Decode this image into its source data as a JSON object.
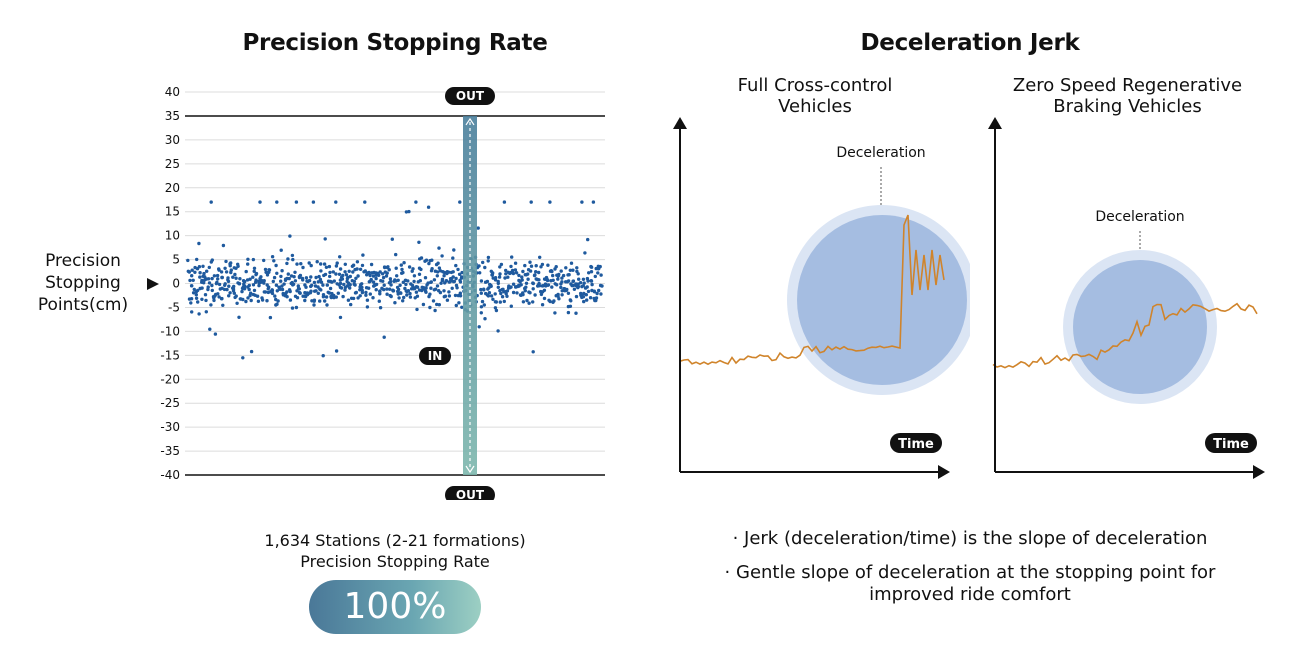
{
  "left": {
    "title": "Precision Stopping Rate",
    "ylabel_lines": [
      "Precision",
      "Stopping",
      "Points(cm)"
    ],
    "stat_lines": [
      "1,634 Stations (2-21 formations)",
      "Precision Stopping Rate"
    ],
    "rate": "100%"
  },
  "right": {
    "title": "Deceleration Jerk",
    "notes": [
      "· Jerk (deceleration/time) is the slope of deceleration",
      "· Gentle slope of deceleration at the stopping point for improved ride comfort"
    ]
  },
  "chart_data": [
    {
      "type": "scatter",
      "title": "Precision Stopping Rate",
      "ylabel": "Precision Stopping Points(cm)",
      "xlabel": "",
      "ylim": [
        -40,
        40
      ],
      "yticks": [
        40,
        35,
        30,
        25,
        20,
        15,
        10,
        5,
        0,
        -5,
        -10,
        -15,
        -20,
        -25,
        -30,
        -35,
        -40
      ],
      "grid": true,
      "threshold_lines": [
        35,
        -40
      ],
      "badges": {
        "out_top": "OUT",
        "in": "IN",
        "out_bottom": "OUT"
      },
      "point_count": 1634,
      "point_color": "#1f5a9e",
      "band_color": "#5f9aa6"
    },
    {
      "type": "line",
      "title": "Full Cross-control Vehicles",
      "xlabel": "Time",
      "annotation": "Deceleration",
      "line_color": "#d0842b",
      "circle_color": "#9fb8df"
    },
    {
      "type": "line",
      "title": "Zero Speed Regenerative Braking Vehicles",
      "xlabel": "Time",
      "annotation": "Deceleration",
      "line_color": "#d0842b",
      "circle_color": "#9fb8df"
    }
  ]
}
